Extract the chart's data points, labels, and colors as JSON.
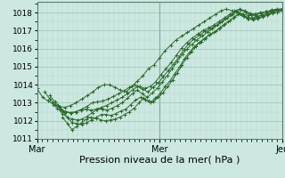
{
  "title": "Pression niveau de la mer( hPa )",
  "background_color": "#cce8e0",
  "grid_color_major": "#9dbfb8",
  "grid_color_minor": "#b8d8d0",
  "line_color": "#2d6a2d",
  "ylim": [
    1011.0,
    1018.6
  ],
  "yticks": [
    1011,
    1012,
    1013,
    1014,
    1015,
    1016,
    1017,
    1018
  ],
  "xtick_labels": [
    "Mar",
    "Mer",
    "Jeu"
  ],
  "xtick_positions": [
    0,
    48,
    96
  ],
  "vline_positions": [
    0,
    48,
    96
  ],
  "series": [
    {
      "start": 0,
      "data": [
        1013.8,
        1013.3,
        1013.1,
        1012.9,
        1012.8,
        1012.75,
        1012.85,
        1013.0,
        1013.2,
        1013.4,
        1013.6,
        1013.85,
        1014.0,
        1014.0,
        1013.85,
        1013.7,
        1013.6,
        1013.9,
        1014.2,
        1014.5,
        1014.9,
        1015.1,
        1015.5,
        1015.9,
        1016.2,
        1016.5,
        1016.7,
        1016.9,
        1017.1,
        1017.3,
        1017.5,
        1017.7,
        1017.9,
        1018.1,
        1018.2,
        1018.1,
        1018.0,
        1017.9,
        1017.85,
        1017.9,
        1018.0,
        1018.05,
        1018.1,
        1018.15,
        1018.2
      ]
    },
    {
      "start": 3,
      "data": [
        1013.6,
        1013.2,
        1012.9,
        1012.65,
        1012.5,
        1012.45,
        1012.5,
        1012.65,
        1012.8,
        1013.0,
        1013.05,
        1013.1,
        1013.2,
        1013.35,
        1013.5,
        1013.65,
        1013.85,
        1014.0,
        1013.9,
        1013.8,
        1013.9,
        1014.15,
        1014.55,
        1014.9,
        1015.25,
        1015.65,
        1016.05,
        1016.35,
        1016.6,
        1016.8,
        1017.0,
        1017.15,
        1017.3,
        1017.5,
        1017.7,
        1017.9,
        1018.1,
        1018.2,
        1018.1,
        1017.95,
        1017.9,
        1017.95,
        1018.05,
        1018.15,
        1018.2,
        1018.2
      ]
    },
    {
      "start": 5,
      "data": [
        1013.4,
        1013.05,
        1012.7,
        1012.5,
        1012.45,
        1012.5,
        1012.6,
        1012.65,
        1012.6,
        1012.65,
        1012.75,
        1012.85,
        1013.0,
        1013.15,
        1013.3,
        1013.5,
        1013.7,
        1013.9,
        1013.75,
        1013.6,
        1013.85,
        1014.1,
        1014.45,
        1014.8,
        1015.15,
        1015.55,
        1015.95,
        1016.3,
        1016.55,
        1016.75,
        1016.95,
        1017.1,
        1017.25,
        1017.45,
        1017.65,
        1017.85,
        1018.05,
        1018.15,
        1018.0,
        1017.85,
        1017.8,
        1017.85,
        1017.95,
        1018.05,
        1018.15,
        1018.2
      ]
    },
    {
      "start": 6,
      "data": [
        1013.0,
        1012.7,
        1012.4,
        1012.2,
        1012.1,
        1012.05,
        1012.1,
        1012.25,
        1012.45,
        1012.65,
        1012.65,
        1012.6,
        1012.7,
        1012.85,
        1013.0,
        1013.25,
        1013.5,
        1013.7,
        1013.5,
        1013.3,
        1013.55,
        1013.8,
        1014.15,
        1014.5,
        1014.9,
        1015.3,
        1015.7,
        1016.0,
        1016.25,
        1016.5,
        1016.7,
        1016.9,
        1017.1,
        1017.3,
        1017.5,
        1017.7,
        1017.9,
        1018.05,
        1017.9,
        1017.75,
        1017.7,
        1017.75,
        1017.85,
        1017.95,
        1018.05,
        1018.1,
        1018.15
      ]
    },
    {
      "start": 8,
      "data": [
        1012.9,
        1012.55,
        1012.2,
        1011.9,
        1011.85,
        1011.8,
        1011.9,
        1012.05,
        1012.2,
        1012.35,
        1012.35,
        1012.3,
        1012.4,
        1012.55,
        1012.65,
        1012.9,
        1013.15,
        1013.3,
        1013.15,
        1013.0,
        1013.25,
        1013.5,
        1013.9,
        1014.2,
        1014.6,
        1015.0,
        1015.45,
        1015.8,
        1016.1,
        1016.35,
        1016.55,
        1016.75,
        1016.9,
        1017.1,
        1017.3,
        1017.5,
        1017.7,
        1017.9,
        1017.8,
        1017.65,
        1017.6,
        1017.65,
        1017.75,
        1017.85,
        1017.95,
        1018.0,
        1018.1
      ]
    },
    {
      "start": 10,
      "data": [
        1012.2,
        1011.85,
        1011.5,
        1011.7,
        1011.9,
        1012.1,
        1012.2,
        1012.15,
        1012.05,
        1012.0,
        1012.05,
        1012.1,
        1012.2,
        1012.35,
        1012.5,
        1012.7,
        1013.0,
        1013.25,
        1013.1,
        1013.05,
        1013.3,
        1013.55,
        1013.9,
        1014.25,
        1014.65,
        1015.1,
        1015.5,
        1015.85,
        1016.15,
        1016.4,
        1016.6,
        1016.8,
        1016.95,
        1017.15,
        1017.35,
        1017.55,
        1017.75,
        1017.95,
        1017.8,
        1017.65,
        1017.65,
        1017.7,
        1017.8,
        1017.9,
        1018.0,
        1018.1,
        1018.15
      ]
    }
  ]
}
